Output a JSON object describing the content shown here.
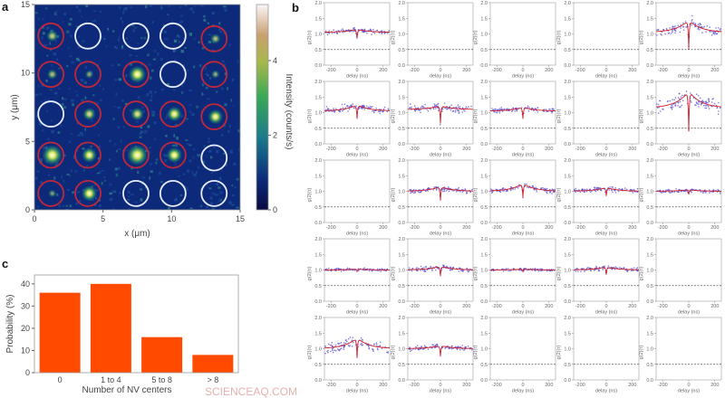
{
  "panel_labels": {
    "a": "a",
    "b": "b",
    "c": "c"
  },
  "watermark": "SCIENCEAQ.COM",
  "chart_data": [
    {
      "type": "heatmap",
      "panel": "a",
      "xlabel": "x (μm)",
      "ylabel": "y (μm)",
      "xlim": [
        0,
        15
      ],
      "ylim": [
        0,
        15
      ],
      "xticks": [
        "0",
        "5",
        "10",
        "15"
      ],
      "yticks": [
        "0",
        "5",
        "10",
        "15"
      ],
      "colorbar": {
        "label": "Intensity (counts/s)",
        "range": [
          0,
          5.5
        ],
        "ticks": [
          "0",
          "2",
          "4"
        ],
        "colormap": "gist_earth-like (dark blue → green → yellow → white)"
      },
      "background_color": "#0d2a7a",
      "circle_colors": {
        "with_nv": "#c0283a",
        "without_nv": "#e8ecff"
      },
      "circles": [
        {
          "x": 1.2,
          "y": 12.7,
          "nv": true,
          "spot": 2.2
        },
        {
          "x": 3.9,
          "y": 12.7,
          "nv": false,
          "spot": 0
        },
        {
          "x": 7.4,
          "y": 12.7,
          "nv": false,
          "spot": 0
        },
        {
          "x": 10.1,
          "y": 12.7,
          "nv": false,
          "spot": 0
        },
        {
          "x": 13.1,
          "y": 12.5,
          "nv": true,
          "spot": 1.8
        },
        {
          "x": 1.2,
          "y": 9.9,
          "nv": true,
          "spot": 1.8
        },
        {
          "x": 3.9,
          "y": 9.9,
          "nv": true,
          "spot": 1.2
        },
        {
          "x": 7.4,
          "y": 9.9,
          "nv": true,
          "spot": 4.2
        },
        {
          "x": 10.1,
          "y": 9.9,
          "nv": false,
          "spot": 0
        },
        {
          "x": 13.1,
          "y": 9.9,
          "nv": true,
          "spot": 1.2
        },
        {
          "x": 1.2,
          "y": 7.0,
          "nv": false,
          "spot": 0
        },
        {
          "x": 3.9,
          "y": 7.0,
          "nv": true,
          "spot": 2.6
        },
        {
          "x": 7.4,
          "y": 7.0,
          "nv": true,
          "spot": 2.8
        },
        {
          "x": 10.1,
          "y": 7.0,
          "nv": true,
          "spot": 3.4
        },
        {
          "x": 13.1,
          "y": 6.8,
          "nv": true,
          "spot": 3.4
        },
        {
          "x": 1.2,
          "y": 4.0,
          "nv": true,
          "spot": 5.2
        },
        {
          "x": 3.9,
          "y": 4.0,
          "nv": true,
          "spot": 3.4
        },
        {
          "x": 7.4,
          "y": 4.0,
          "nv": true,
          "spot": 5.4
        },
        {
          "x": 10.1,
          "y": 4.0,
          "nv": true,
          "spot": 3.6
        },
        {
          "x": 13.1,
          "y": 3.8,
          "nv": false,
          "spot": 0
        },
        {
          "x": 1.2,
          "y": 1.2,
          "nv": true,
          "spot": 1.0
        },
        {
          "x": 3.9,
          "y": 1.2,
          "nv": true,
          "spot": 3.6
        },
        {
          "x": 7.4,
          "y": 1.2,
          "nv": false,
          "spot": 0
        },
        {
          "x": 10.1,
          "y": 1.2,
          "nv": false,
          "spot": 0
        },
        {
          "x": 13.1,
          "y": 1.2,
          "nv": false,
          "spot": 0
        }
      ]
    },
    {
      "type": "scatter",
      "panel": "b",
      "layout": "5x5 grid",
      "xlabel": "delay (ns)",
      "ylabel": "g(2)(τ)",
      "xlim": [
        -250,
        250
      ],
      "ylim": [
        0,
        2.0
      ],
      "xticks": [
        "-200",
        "0",
        "200"
      ],
      "yticks": [
        "0.0",
        "0.5",
        "1.0",
        "1.5",
        "2.0"
      ],
      "reference_line": 0.5,
      "colors": {
        "points": "#5a4fd8",
        "fit": "#d0202a",
        "reference": "#555555"
      },
      "subplots": [
        {
          "row": 1,
          "col": 1,
          "has_data": true,
          "baseline": 1.05,
          "dip": 0.85,
          "bunching": 0.1,
          "spread": 0.05
        },
        {
          "row": 1,
          "col": 2,
          "has_data": false
        },
        {
          "row": 1,
          "col": 3,
          "has_data": false
        },
        {
          "row": 1,
          "col": 4,
          "has_data": false
        },
        {
          "row": 1,
          "col": 5,
          "has_data": true,
          "baseline": 1.05,
          "dip": 0.5,
          "bunching": 0.4,
          "spread": 0.12
        },
        {
          "row": 2,
          "col": 1,
          "has_data": true,
          "baseline": 1.05,
          "dip": 0.8,
          "bunching": 0.2,
          "spread": 0.07
        },
        {
          "row": 2,
          "col": 2,
          "has_data": true,
          "baseline": 1.1,
          "dip": 0.65,
          "bunching": 0.12,
          "spread": 0.09
        },
        {
          "row": 2,
          "col": 3,
          "has_data": true,
          "baseline": 1.05,
          "dip": 0.8,
          "bunching": 0.12,
          "spread": 0.05
        },
        {
          "row": 2,
          "col": 4,
          "has_data": false
        },
        {
          "row": 2,
          "col": 5,
          "has_data": true,
          "baseline": 1.15,
          "dip": 0.4,
          "bunching": 0.55,
          "spread": 0.18
        },
        {
          "row": 3,
          "col": 1,
          "has_data": false
        },
        {
          "row": 3,
          "col": 2,
          "has_data": true,
          "baseline": 1.0,
          "dip": 0.7,
          "bunching": 0.15,
          "spread": 0.06
        },
        {
          "row": 3,
          "col": 3,
          "has_data": true,
          "baseline": 1.0,
          "dip": 0.8,
          "bunching": 0.25,
          "spread": 0.06
        },
        {
          "row": 3,
          "col": 4,
          "has_data": true,
          "baseline": 1.0,
          "dip": 0.85,
          "bunching": 0.12,
          "spread": 0.05
        },
        {
          "row": 3,
          "col": 5,
          "has_data": true,
          "baseline": 1.0,
          "dip": 0.9,
          "bunching": 0.05,
          "spread": 0.04
        },
        {
          "row": 4,
          "col": 1,
          "has_data": true,
          "baseline": 1.0,
          "dip": 0.95,
          "bunching": 0.03,
          "spread": 0.03
        },
        {
          "row": 4,
          "col": 2,
          "has_data": true,
          "baseline": 1.0,
          "dip": 0.8,
          "bunching": 0.12,
          "spread": 0.05
        },
        {
          "row": 4,
          "col": 3,
          "has_data": true,
          "baseline": 1.0,
          "dip": 0.95,
          "bunching": 0.03,
          "spread": 0.03
        },
        {
          "row": 4,
          "col": 4,
          "has_data": true,
          "baseline": 1.0,
          "dip": 0.85,
          "bunching": 0.1,
          "spread": 0.05
        },
        {
          "row": 4,
          "col": 5,
          "has_data": false
        },
        {
          "row": 5,
          "col": 1,
          "has_data": true,
          "baseline": 1.0,
          "dip": 0.7,
          "bunching": 0.35,
          "spread": 0.12
        },
        {
          "row": 5,
          "col": 2,
          "has_data": true,
          "baseline": 1.0,
          "dip": 0.75,
          "bunching": 0.1,
          "spread": 0.05
        },
        {
          "row": 5,
          "col": 3,
          "has_data": false
        },
        {
          "row": 5,
          "col": 4,
          "has_data": false
        },
        {
          "row": 5,
          "col": 5,
          "has_data": false
        }
      ]
    },
    {
      "type": "bar",
      "panel": "c",
      "categories": [
        "0",
        "1 to 4",
        "5 to 8",
        "> 8"
      ],
      "values": [
        36,
        40,
        16,
        8
      ],
      "xlabel": "Number of NV centers",
      "ylabel": "Probability (%)",
      "ylim": [
        0,
        44
      ],
      "yticks": [
        "0",
        "10",
        "20",
        "30",
        "40"
      ],
      "bar_color": "#ff4a00"
    }
  ]
}
